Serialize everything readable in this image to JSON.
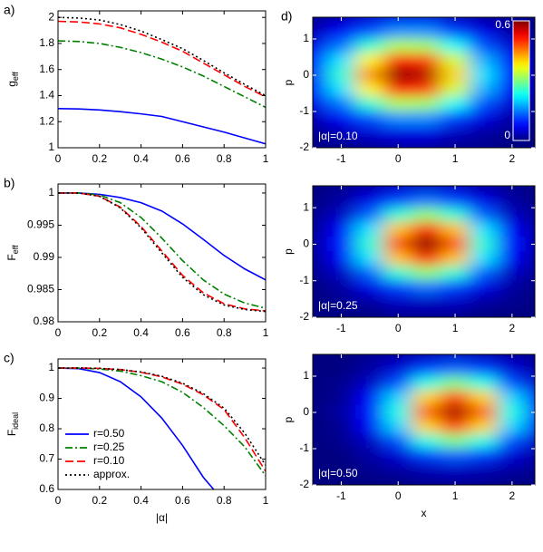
{
  "chart_data": [
    {
      "type": "line",
      "panel_label": "a)",
      "ylabel": "g",
      "ylabel_sub": "eff",
      "x": [
        0,
        0.1,
        0.2,
        0.3,
        0.4,
        0.5,
        0.6,
        0.7,
        0.8,
        0.9,
        1
      ],
      "xlim": [
        0,
        1
      ],
      "xticks": [
        0,
        0.2,
        0.4,
        0.6,
        0.8,
        1
      ],
      "ylim": [
        1,
        2.05
      ],
      "yticks": [
        1,
        1.2,
        1.4,
        1.6,
        1.8,
        2
      ],
      "series": [
        {
          "name": "r=0.50",
          "color": "#0000ff",
          "style": "solid",
          "values": [
            1.3,
            1.298,
            1.29,
            1.277,
            1.26,
            1.24,
            1.2,
            1.16,
            1.12,
            1.075,
            1.03
          ]
        },
        {
          "name": "r=0.25",
          "color": "#008000",
          "style": "dashdot",
          "values": [
            1.82,
            1.815,
            1.8,
            1.77,
            1.73,
            1.68,
            1.62,
            1.55,
            1.47,
            1.39,
            1.31
          ]
        },
        {
          "name": "r=0.10",
          "color": "#ff0000",
          "style": "dashed",
          "values": [
            1.97,
            1.965,
            1.95,
            1.92,
            1.87,
            1.81,
            1.74,
            1.65,
            1.56,
            1.47,
            1.39
          ]
        },
        {
          "name": "approx.",
          "color": "#000000",
          "style": "dotted",
          "values": [
            2.0,
            1.995,
            1.98,
            1.945,
            1.895,
            1.83,
            1.76,
            1.67,
            1.575,
            1.485,
            1.4
          ]
        }
      ]
    },
    {
      "type": "line",
      "panel_label": "b)",
      "ylabel": "F",
      "ylabel_sub": "eff",
      "x": [
        0,
        0.1,
        0.2,
        0.3,
        0.4,
        0.5,
        0.6,
        0.7,
        0.8,
        0.9,
        1
      ],
      "xlim": [
        0,
        1
      ],
      "xticks": [
        0,
        0.2,
        0.4,
        0.6,
        0.8,
        1
      ],
      "ylim": [
        0.98,
        1.0014
      ],
      "yticks": [
        0.98,
        0.985,
        0.99,
        0.995,
        1
      ],
      "series": [
        {
          "name": "r=0.50",
          "color": "#0000ff",
          "style": "solid",
          "values": [
            1,
            1,
            0.9998,
            0.9993,
            0.9985,
            0.9972,
            0.9952,
            0.9928,
            0.9903,
            0.9882,
            0.9865
          ]
        },
        {
          "name": "r=0.25",
          "color": "#008000",
          "style": "dashdot",
          "values": [
            1,
            1,
            0.9997,
            0.9985,
            0.9962,
            0.993,
            0.9895,
            0.9865,
            0.9843,
            0.9829,
            0.9821
          ]
        },
        {
          "name": "r=0.10",
          "color": "#ff0000",
          "style": "dashed",
          "values": [
            1,
            1,
            0.9995,
            0.9978,
            0.9948,
            0.991,
            0.9872,
            0.9845,
            0.9828,
            0.982,
            0.9817
          ]
        },
        {
          "name": "approx.",
          "color": "#000000",
          "style": "dotted",
          "values": [
            1,
            1,
            0.9995,
            0.9977,
            0.9946,
            0.9907,
            0.9869,
            0.9842,
            0.9826,
            0.9819,
            0.9816
          ]
        }
      ]
    },
    {
      "type": "line",
      "panel_label": "c)",
      "ylabel": "F",
      "ylabel_sub": "ideal",
      "xlabel": "|α|",
      "legend": "lower left",
      "x": [
        0,
        0.1,
        0.2,
        0.3,
        0.4,
        0.5,
        0.6,
        0.7,
        0.8,
        0.9,
        1
      ],
      "xlim": [
        0,
        1
      ],
      "xticks": [
        0,
        0.2,
        0.4,
        0.6,
        0.8,
        1
      ],
      "ylim": [
        0.6,
        1.03
      ],
      "yticks": [
        0.6,
        0.7,
        0.8,
        0.9,
        1
      ],
      "series": [
        {
          "name": "r=0.50",
          "color": "#0000ff",
          "style": "solid",
          "x": [
            0,
            0.1,
            0.2,
            0.3,
            0.4,
            0.5,
            0.6,
            0.7,
            0.75
          ],
          "values": [
            1,
            0.998,
            0.985,
            0.955,
            0.905,
            0.835,
            0.745,
            0.64,
            0.6
          ]
        },
        {
          "name": "r=0.25",
          "color": "#008000",
          "style": "dashdot",
          "values": [
            1,
            1,
            0.997,
            0.99,
            0.975,
            0.955,
            0.92,
            0.87,
            0.81,
            0.74,
            0.645
          ]
        },
        {
          "name": "r=0.10",
          "color": "#ff0000",
          "style": "dashed",
          "values": [
            1,
            1,
            0.999,
            0.995,
            0.986,
            0.971,
            0.947,
            0.912,
            0.863,
            0.77,
            0.66
          ]
        },
        {
          "name": "approx.",
          "color": "#000000",
          "style": "dotted",
          "values": [
            1,
            1,
            0.999,
            0.995,
            0.987,
            0.973,
            0.95,
            0.916,
            0.868,
            0.785,
            0.68
          ]
        }
      ]
    },
    {
      "type": "heatmap",
      "panel_label": "d)",
      "ylabel": "p",
      "annotation": "|α|=0.10",
      "xlim": [
        -1.5,
        2.4
      ],
      "xticks": [
        -1,
        0,
        1,
        2
      ],
      "ylim": [
        -2,
        1.6
      ],
      "yticks": [
        -2,
        -1,
        0,
        1
      ],
      "clim": [
        0,
        0.6
      ],
      "colorbar_ticks": [
        0,
        0.6
      ],
      "x": [
        -1.5,
        -1,
        -0.5,
        0,
        0.5,
        1,
        1.5,
        2,
        2.5
      ],
      "y": [
        1.6,
        1.2,
        0.8,
        0.4,
        0,
        -0.4,
        -0.8,
        -1.2,
        -1.6,
        -2.0
      ],
      "z": [
        [
          0.01,
          0.03,
          0.05,
          0.06,
          0.06,
          0.04,
          0.02,
          0.01,
          0
        ],
        [
          0.03,
          0.07,
          0.12,
          0.16,
          0.16,
          0.11,
          0.06,
          0.02,
          0.01
        ],
        [
          0.06,
          0.14,
          0.25,
          0.33,
          0.32,
          0.23,
          0.12,
          0.05,
          0.01
        ],
        [
          0.09,
          0.21,
          0.38,
          0.51,
          0.49,
          0.35,
          0.18,
          0.07,
          0.02
        ],
        [
          0.1,
          0.25,
          0.44,
          0.59,
          0.57,
          0.4,
          0.21,
          0.08,
          0.02
        ],
        [
          0.09,
          0.21,
          0.38,
          0.51,
          0.49,
          0.35,
          0.18,
          0.07,
          0.02
        ],
        [
          0.06,
          0.14,
          0.25,
          0.33,
          0.32,
          0.23,
          0.12,
          0.05,
          0.01
        ],
        [
          0.03,
          0.07,
          0.12,
          0.16,
          0.16,
          0.11,
          0.06,
          0.02,
          0.01
        ],
        [
          0.01,
          0.03,
          0.05,
          0.06,
          0.06,
          0.04,
          0.02,
          0.01,
          0
        ],
        [
          0,
          0.01,
          0.01,
          0.02,
          0.02,
          0.01,
          0.01,
          0,
          0
        ]
      ]
    },
    {
      "type": "heatmap",
      "ylabel": "p",
      "annotation": "|α|=0.25",
      "xlim": [
        -1.5,
        2.4
      ],
      "xticks": [
        -1,
        0,
        1,
        2
      ],
      "ylim": [
        -2,
        1.6
      ],
      "yticks": [
        -2,
        -1,
        0,
        1
      ],
      "clim": [
        0,
        0.6
      ],
      "x": [
        -1.5,
        -1,
        -0.5,
        0,
        0.5,
        1,
        1.5,
        2,
        2.5
      ],
      "y": [
        1.6,
        1.2,
        0.8,
        0.4,
        0,
        -0.4,
        -0.8,
        -1.2,
        -1.6,
        -2.0
      ],
      "z": [
        [
          0,
          0.01,
          0.02,
          0.04,
          0.04,
          0.04,
          0.02,
          0.01,
          0
        ],
        [
          0,
          0.02,
          0.06,
          0.11,
          0.14,
          0.11,
          0.06,
          0.02,
          0
        ],
        [
          0.01,
          0.04,
          0.13,
          0.25,
          0.31,
          0.25,
          0.13,
          0.04,
          0.01
        ],
        [
          0.01,
          0.07,
          0.21,
          0.41,
          0.51,
          0.41,
          0.21,
          0.07,
          0.01
        ],
        [
          0.02,
          0.08,
          0.25,
          0.48,
          0.6,
          0.48,
          0.25,
          0.08,
          0.02
        ],
        [
          0.01,
          0.07,
          0.21,
          0.41,
          0.51,
          0.41,
          0.21,
          0.07,
          0.01
        ],
        [
          0.01,
          0.04,
          0.13,
          0.25,
          0.31,
          0.25,
          0.13,
          0.04,
          0.01
        ],
        [
          0,
          0.02,
          0.06,
          0.11,
          0.14,
          0.11,
          0.06,
          0.02,
          0
        ],
        [
          0,
          0.01,
          0.02,
          0.04,
          0.04,
          0.04,
          0.02,
          0.01,
          0
        ],
        [
          0,
          0,
          0,
          0.01,
          0.01,
          0.01,
          0,
          0,
          0
        ]
      ]
    },
    {
      "type": "heatmap",
      "ylabel": "p",
      "xlabel": "x",
      "annotation": "|α|=0.50",
      "xlim": [
        -1.5,
        2.4
      ],
      "xticks": [
        -1,
        0,
        1,
        2
      ],
      "ylim": [
        -2,
        1.6
      ],
      "yticks": [
        -2,
        -1,
        0,
        1
      ],
      "clim": [
        0,
        0.6
      ],
      "x": [
        -1.5,
        -1,
        -0.5,
        0,
        0.5,
        1,
        1.5,
        2,
        2.5
      ],
      "y": [
        1.6,
        1.2,
        0.8,
        0.4,
        0,
        -0.4,
        -0.8,
        -1.2,
        -1.6,
        -2.0
      ],
      "z": [
        [
          0,
          0,
          0.01,
          0.02,
          0.03,
          0.04,
          0.03,
          0.02,
          0.01
        ],
        [
          0,
          0,
          0.02,
          0.05,
          0.11,
          0.13,
          0.11,
          0.05,
          0.02
        ],
        [
          0,
          0.01,
          0.04,
          0.12,
          0.24,
          0.3,
          0.24,
          0.12,
          0.04
        ],
        [
          0,
          0.01,
          0.07,
          0.2,
          0.4,
          0.49,
          0.4,
          0.2,
          0.07
        ],
        [
          0,
          0.02,
          0.08,
          0.24,
          0.47,
          0.58,
          0.47,
          0.24,
          0.08
        ],
        [
          0,
          0.01,
          0.07,
          0.2,
          0.4,
          0.49,
          0.4,
          0.2,
          0.07
        ],
        [
          0,
          0.01,
          0.04,
          0.12,
          0.24,
          0.3,
          0.24,
          0.12,
          0.04
        ],
        [
          0,
          0,
          0.02,
          0.05,
          0.11,
          0.13,
          0.11,
          0.05,
          0.02
        ],
        [
          0,
          0,
          0.01,
          0.02,
          0.03,
          0.04,
          0.03,
          0.02,
          0.01
        ],
        [
          0,
          0,
          0,
          0,
          0.01,
          0.01,
          0.01,
          0,
          0
        ]
      ]
    }
  ]
}
